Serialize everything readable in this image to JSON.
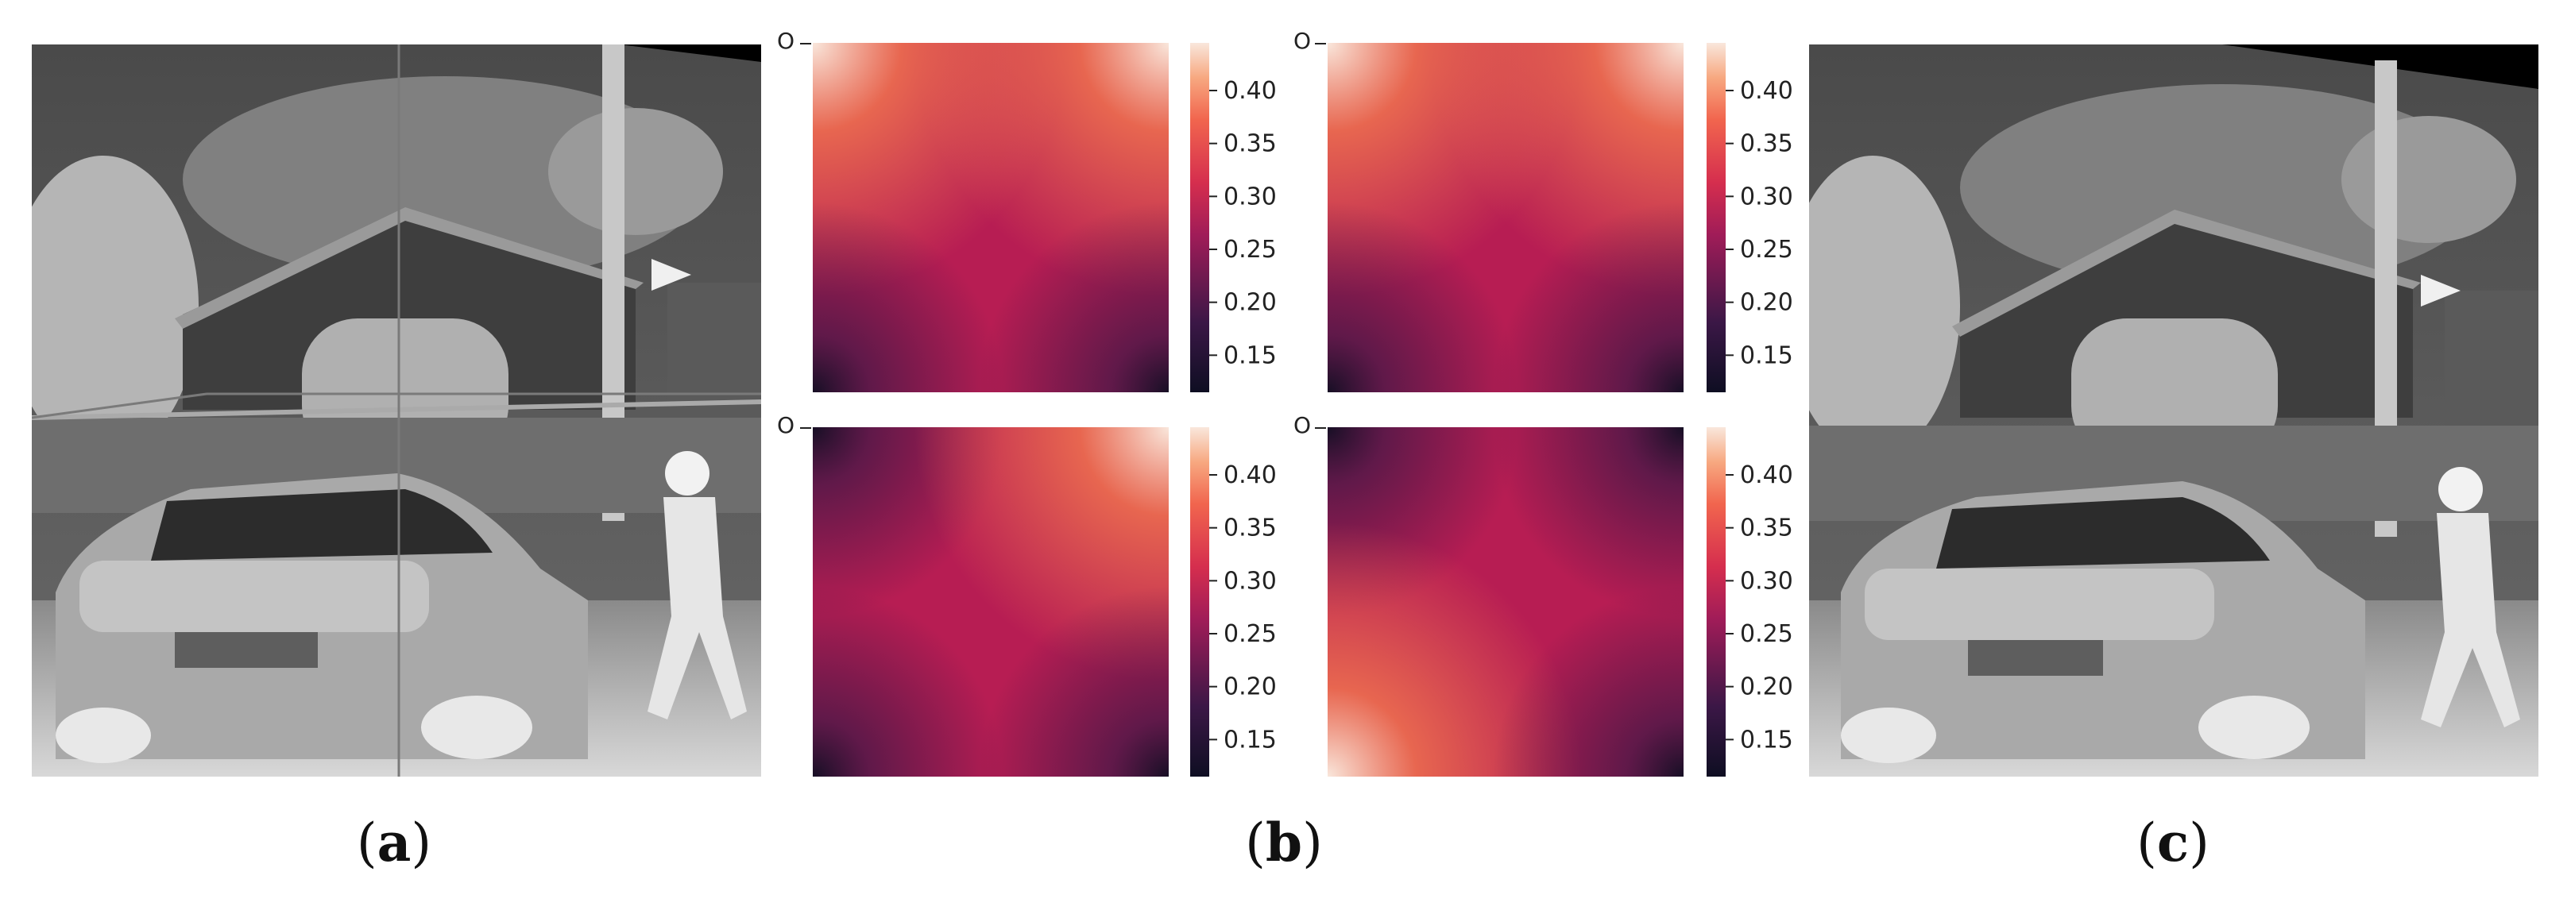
{
  "panels": {
    "a": {
      "caption_open": "(",
      "caption_letter": "a",
      "caption_close": ")"
    },
    "b": {
      "caption_open": "(",
      "caption_letter": "b",
      "caption_close": ")"
    },
    "c": {
      "caption_open": "(",
      "caption_letter": "c",
      "caption_close": ")"
    }
  },
  "heatmap": {
    "origin_label": "O",
    "colormap": "rocket",
    "colorbar": {
      "range": [
        0.115,
        0.445
      ],
      "ticks": [
        0.15,
        0.2,
        0.25,
        0.3,
        0.35,
        0.4
      ],
      "tick_labels": [
        "0.15",
        "0.20",
        "0.25",
        "0.30",
        "0.35",
        "0.40"
      ]
    },
    "maps": [
      {
        "position": "top-left",
        "bright_corners": [
          "top-left",
          "top-right"
        ]
      },
      {
        "position": "top-right",
        "bright_corners": [
          "top-left",
          "top-right"
        ]
      },
      {
        "position": "bottom-left",
        "bright_corners": [
          "top-right"
        ]
      },
      {
        "position": "bottom-right",
        "bright_corners": [
          "bottom-left"
        ]
      }
    ]
  },
  "colors": {
    "rocket_dark": "#0e0e22",
    "rocket_mid": "#b71d53",
    "rocket_light": "#f9e7dc"
  }
}
